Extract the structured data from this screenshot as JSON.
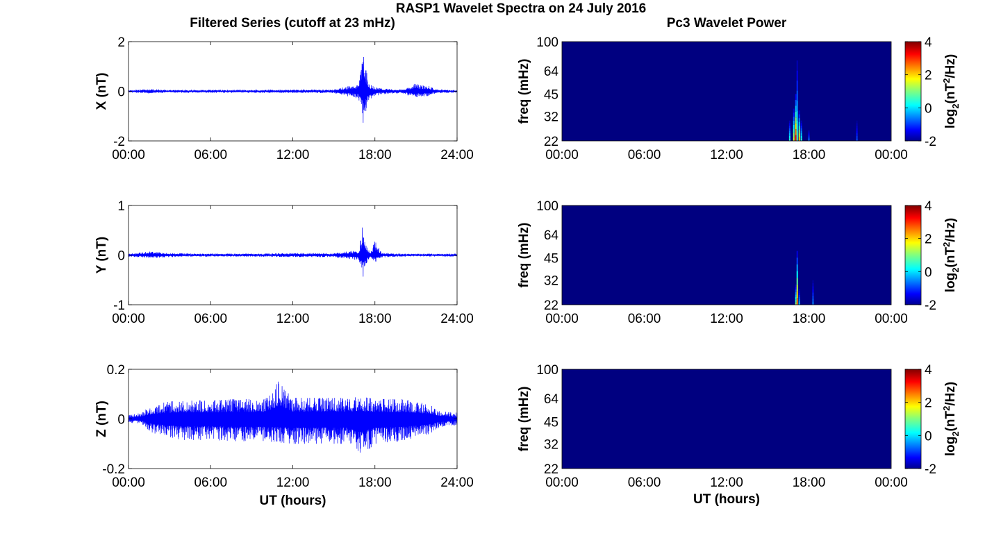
{
  "figure": {
    "title": "RASP1 Wavelet Spectra on 24 July 2016",
    "left_title": "Filtered Series (cutoff at 23 mHz)",
    "right_title": "Pc3 Wavelet Power",
    "bottom_xlabel": "UT (hours)"
  },
  "chart_data": [
    {
      "type": "line",
      "title": "Filtered Series (cutoff at 23 mHz)",
      "ylabel": "X (nT)",
      "xlabel": "",
      "xlim": [
        0,
        24
      ],
      "ylim": [
        -2,
        2
      ],
      "x_ticks": [
        "00:00",
        "06:00",
        "12:00",
        "18:00",
        "24:00"
      ],
      "y_ticks": [
        "-2",
        "0",
        "2"
      ],
      "grid": false,
      "color": "#0000ff",
      "series": [
        {
          "x": [
            0,
            1.5,
            3,
            6,
            9,
            12,
            15,
            16.8,
            17.0,
            17.15,
            17.3,
            17.5,
            17.7,
            18,
            18.5,
            20,
            20.8,
            21.8,
            22.5,
            24
          ],
          "y_max": [
            0.05,
            0.08,
            0.06,
            0.06,
            0.06,
            0.07,
            0.07,
            0.3,
            0.95,
            1.7,
            1.0,
            0.5,
            0.25,
            0.2,
            0.12,
            0.07,
            0.3,
            0.25,
            0.08,
            0.05
          ],
          "y_min": [
            -0.05,
            -0.08,
            -0.06,
            -0.06,
            -0.06,
            -0.07,
            -0.07,
            -0.3,
            -0.8,
            -1.3,
            -0.9,
            -0.5,
            -0.3,
            -0.2,
            -0.12,
            -0.07,
            -0.25,
            -0.2,
            -0.08,
            -0.05
          ]
        }
      ]
    },
    {
      "type": "line",
      "title": "",
      "ylabel": "Y (nT)",
      "xlabel": "",
      "xlim": [
        0,
        24
      ],
      "ylim": [
        -1,
        1
      ],
      "x_ticks": [
        "00:00",
        "06:00",
        "12:00",
        "18:00",
        "24:00"
      ],
      "y_ticks": [
        "-1",
        "0",
        "1"
      ],
      "grid": false,
      "color": "#0000ff",
      "series": [
        {
          "x": [
            0,
            1.5,
            3,
            6,
            9,
            12,
            15,
            16.8,
            17.0,
            17.15,
            17.3,
            17.5,
            17.7,
            18,
            18.5,
            20,
            24
          ],
          "y_max": [
            0.03,
            0.07,
            0.04,
            0.03,
            0.03,
            0.04,
            0.04,
            0.1,
            0.35,
            0.75,
            0.3,
            0.1,
            0.08,
            0.28,
            0.05,
            0.03,
            0.03
          ],
          "y_min": [
            -0.03,
            -0.06,
            -0.04,
            -0.03,
            -0.03,
            -0.04,
            -0.04,
            -0.1,
            -0.3,
            -0.45,
            -0.25,
            -0.1,
            -0.08,
            -0.15,
            -0.05,
            -0.03,
            -0.03
          ]
        }
      ]
    },
    {
      "type": "line",
      "title": "",
      "ylabel": "Z (nT)",
      "xlabel": "UT (hours)",
      "xlim": [
        0,
        24
      ],
      "ylim": [
        -0.2,
        0.2
      ],
      "x_ticks": [
        "00:00",
        "06:00",
        "12:00",
        "18:00",
        "24:00"
      ],
      "y_ticks": [
        "-0.2",
        "0",
        "0.2"
      ],
      "grid": false,
      "color": "#0000ff",
      "series": [
        {
          "x": [
            0,
            1,
            1.5,
            2,
            3,
            4,
            6,
            8,
            10,
            11,
            12,
            14,
            16,
            17,
            18,
            20,
            22,
            22.5,
            23,
            24
          ],
          "y_max": [
            0.015,
            0.025,
            0.05,
            0.06,
            0.07,
            0.075,
            0.075,
            0.08,
            0.08,
            0.155,
            0.085,
            0.085,
            0.085,
            0.09,
            0.08,
            0.08,
            0.06,
            0.04,
            0.03,
            0.025
          ],
          "y_min": [
            -0.015,
            -0.02,
            -0.05,
            -0.06,
            -0.075,
            -0.085,
            -0.085,
            -0.09,
            -0.09,
            -0.095,
            -0.1,
            -0.1,
            -0.1,
            -0.15,
            -0.1,
            -0.09,
            -0.06,
            -0.04,
            -0.03,
            -0.025
          ]
        }
      ]
    },
    {
      "type": "heatmap",
      "title": "Pc3 Wavelet Power",
      "ylabel": "freq (mHz)",
      "xlabel": "",
      "x_ticks": [
        "00:00",
        "06:00",
        "12:00",
        "18:00",
        "00:00"
      ],
      "y_ticks": [
        "22",
        "32",
        "45",
        "64",
        "100"
      ],
      "ylim": [
        22,
        100
      ],
      "y_scale": "log",
      "colorbar_label": "log2(nT^2/Hz)",
      "colorbar_ticks": [
        "-2",
        "0",
        "2",
        "4"
      ],
      "clim": [
        -2,
        4
      ],
      "colormap": "jet",
      "background_value": -2,
      "bursts": [
        {
          "t": 16.6,
          "f_top": 30,
          "value": 0.5
        },
        {
          "t": 16.9,
          "f_top": 36,
          "value": 1.5
        },
        {
          "t": 17.05,
          "f_top": 45,
          "value": 3.0
        },
        {
          "t": 17.15,
          "f_top": 75,
          "value": 0.5
        },
        {
          "t": 17.3,
          "f_top": 35,
          "value": 2.0
        },
        {
          "t": 17.45,
          "f_top": 30,
          "value": 0.5
        },
        {
          "t": 18.0,
          "f_top": 26,
          "value": -0.5
        },
        {
          "t": 21.5,
          "f_top": 30,
          "value": -0.8
        }
      ]
    },
    {
      "type": "heatmap",
      "title": "",
      "ylabel": "freq (mHz)",
      "xlabel": "",
      "x_ticks": [
        "00:00",
        "06:00",
        "12:00",
        "18:00",
        "00:00"
      ],
      "y_ticks": [
        "22",
        "32",
        "45",
        "64",
        "100"
      ],
      "ylim": [
        22,
        100
      ],
      "y_scale": "log",
      "colorbar_label": "log2(nT^2/Hz)",
      "colorbar_ticks": [
        "-2",
        "0",
        "2",
        "4"
      ],
      "clim": [
        -2,
        4
      ],
      "colormap": "jet",
      "background_value": -2,
      "bursts": [
        {
          "t": 17.05,
          "f_top": 30,
          "value": 1.0
        },
        {
          "t": 17.15,
          "f_top": 50,
          "value": 2.5
        },
        {
          "t": 17.3,
          "f_top": 28,
          "value": 0.0
        },
        {
          "t": 18.3,
          "f_top": 32,
          "value": -0.5
        }
      ]
    },
    {
      "type": "heatmap",
      "title": "",
      "ylabel": "freq (mHz)",
      "xlabel": "UT (hours)",
      "x_ticks": [
        "00:00",
        "06:00",
        "12:00",
        "18:00",
        "00:00"
      ],
      "y_ticks": [
        "22",
        "32",
        "45",
        "64",
        "100"
      ],
      "ylim": [
        22,
        100
      ],
      "y_scale": "log",
      "colorbar_label": "log2(nT^2/Hz)",
      "colorbar_ticks": [
        "-2",
        "0",
        "2",
        "4"
      ],
      "clim": [
        -2,
        4
      ],
      "colormap": "jet",
      "background_value": -2,
      "bursts": []
    }
  ]
}
